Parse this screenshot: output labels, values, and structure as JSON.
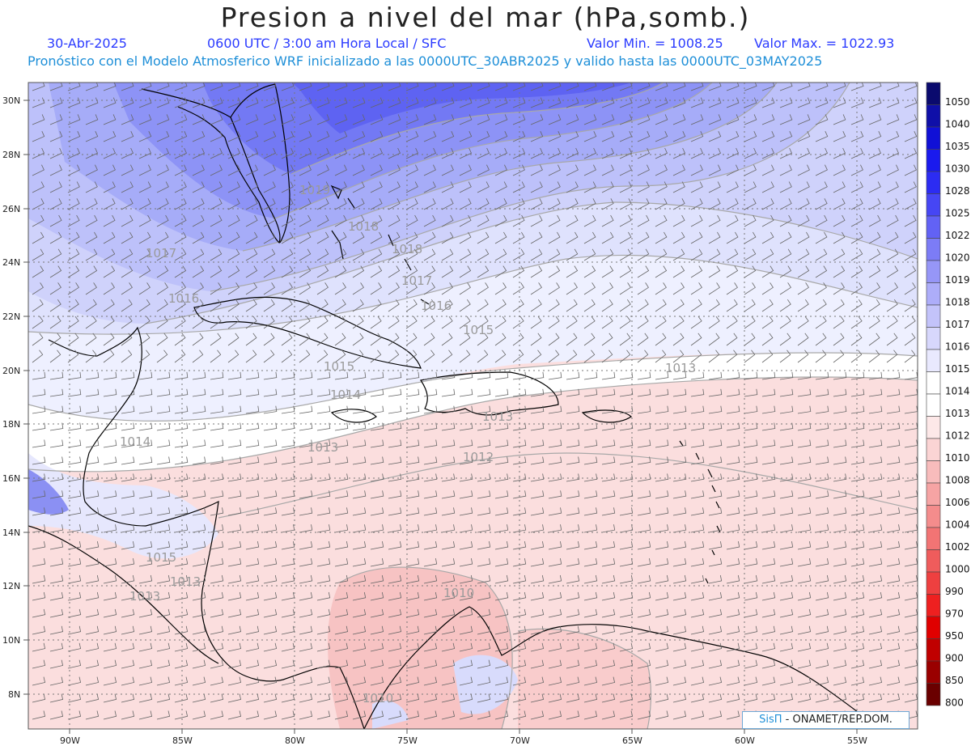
{
  "header": {
    "title": "Presion a nivel del mar (hPa,somb.)",
    "date": "30-Abr-2025",
    "time_info": "0600 UTC / 3:00 am Hora Local / SFC",
    "min_label": "Valor Min. = 1008.25",
    "max_label": "Valor Max. = 1022.93",
    "model_info": "Pronóstico con el Modelo Atmosferico WRF inicializado a las 0000UTC_30ABR2025 y valido hasta las  0000UTC_03MAY2025"
  },
  "axes": {
    "lat_labels": [
      "30N",
      "28N",
      "26N",
      "24N",
      "22N",
      "20N",
      "18N",
      "16N",
      "14N",
      "12N",
      "10N",
      "8N"
    ],
    "lon_labels": [
      "90W",
      "85W",
      "80W",
      "75W",
      "70W",
      "65W",
      "60W",
      "55W"
    ]
  },
  "colorbar": {
    "labels": [
      "1050",
      "1040",
      "1035",
      "1030",
      "1028",
      "1025",
      "1022",
      "1020",
      "1019",
      "1018",
      "1017",
      "1016",
      "1015",
      "1014",
      "1013",
      "1012",
      "1010",
      "1008",
      "1006",
      "1004",
      "1002",
      "1000",
      "990",
      "970",
      "950",
      "900",
      "850",
      "800"
    ],
    "colors": [
      "#0a0a6e",
      "#0f0fa8",
      "#1010d6",
      "#1a1aee",
      "#2c2cf2",
      "#4646f4",
      "#6262f5",
      "#7c7cf6",
      "#9696f7",
      "#adadf9",
      "#c3c3fa",
      "#d7d7fc",
      "#e9e9fe",
      "#ffffff",
      "#ffffff",
      "#fde8e8",
      "#fbd4d4",
      "#f8bcbc",
      "#f6a4a4",
      "#f48c8c",
      "#f27474",
      "#ef5c5c",
      "#ee4040",
      "#ee2020",
      "#e00000",
      "#c00000",
      "#9a0000",
      "#6a0000"
    ]
  },
  "contour_labels": [
    "1019",
    "1018",
    "1018",
    "1017",
    "1017",
    "1016",
    "1016",
    "1015",
    "1015",
    "1014",
    "1014",
    "1013",
    "1013",
    "1013",
    "1012",
    "1015",
    "1013",
    "1013",
    "1010",
    "1010"
  ],
  "credit": {
    "brand": "SisΠ",
    "org": "- ONAMET/REP.DOM."
  }
}
